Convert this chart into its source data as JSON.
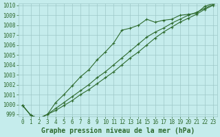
{
  "x": [
    0,
    1,
    2,
    3,
    4,
    5,
    6,
    7,
    8,
    9,
    10,
    11,
    12,
    13,
    14,
    15,
    16,
    17,
    18,
    19,
    20,
    21,
    22,
    23
  ],
  "line1": [
    999.9,
    998.9,
    998.6,
    999.0,
    1000.2,
    1001.0,
    1001.9,
    1002.8,
    1003.5,
    1004.5,
    1005.3,
    1006.2,
    1007.5,
    1007.7,
    1008.0,
    1008.6,
    1008.3,
    1008.5,
    1008.6,
    1009.0,
    1009.1,
    1009.2,
    1009.9,
    1010.2
  ],
  "line2": [
    999.9,
    998.9,
    998.6,
    999.0,
    999.6,
    1000.2,
    1000.8,
    1001.4,
    1002.0,
    1002.7,
    1003.3,
    1004.0,
    1004.7,
    1005.4,
    1006.1,
    1006.8,
    1007.3,
    1007.7,
    1008.2,
    1008.6,
    1009.0,
    1009.3,
    1009.7,
    1010.1
  ],
  "line3": [
    999.9,
    998.9,
    998.6,
    999.0,
    999.4,
    999.9,
    1000.4,
    1001.0,
    1001.5,
    1002.1,
    1002.7,
    1003.3,
    1004.0,
    1004.7,
    1005.3,
    1006.0,
    1006.7,
    1007.3,
    1007.8,
    1008.3,
    1008.7,
    1009.1,
    1009.6,
    1010.0
  ],
  "ylim": [
    999,
    1010
  ],
  "xlim": [
    -0.5,
    23.5
  ],
  "yticks": [
    999,
    1000,
    1001,
    1002,
    1003,
    1004,
    1005,
    1006,
    1007,
    1008,
    1009,
    1010
  ],
  "xticks": [
    0,
    1,
    2,
    3,
    4,
    5,
    6,
    7,
    8,
    9,
    10,
    11,
    12,
    13,
    14,
    15,
    16,
    17,
    18,
    19,
    20,
    21,
    22,
    23
  ],
  "line_color": "#2d6a2d",
  "bg_color": "#c5ecec",
  "grid_color": "#9dc8c8",
  "xlabel": "Graphe pression niveau de la mer (hPa)",
  "xlabel_fontsize": 7,
  "tick_fontsize": 5.5,
  "marker": "+",
  "markersize": 3,
  "linewidth": 0.8
}
